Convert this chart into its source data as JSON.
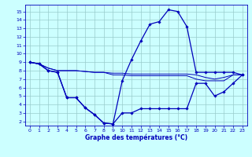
{
  "xlabel": "Graphe des températures (°C)",
  "hours": [
    0,
    1,
    2,
    3,
    4,
    5,
    6,
    7,
    8,
    9,
    10,
    11,
    12,
    13,
    14,
    15,
    16,
    17,
    18,
    19,
    20,
    21,
    22,
    23
  ],
  "line_temp": [
    9.0,
    8.8,
    8.0,
    7.8,
    4.8,
    4.8,
    3.6,
    2.8,
    1.8,
    1.7,
    6.8,
    9.3,
    11.5,
    13.5,
    13.8,
    15.2,
    15.0,
    13.2,
    7.8,
    7.8,
    7.8,
    7.8,
    7.8,
    7.5
  ],
  "line_min": [
    9.0,
    8.8,
    8.0,
    7.8,
    4.8,
    4.8,
    3.6,
    2.8,
    1.8,
    1.7,
    3.0,
    3.0,
    3.5,
    3.5,
    3.5,
    3.5,
    3.5,
    3.5,
    6.5,
    6.5,
    5.0,
    5.5,
    6.5,
    7.5
  ],
  "line_avg1": [
    9.0,
    8.8,
    8.3,
    8.0,
    8.0,
    8.0,
    7.9,
    7.8,
    7.8,
    7.7,
    7.7,
    7.6,
    7.6,
    7.6,
    7.6,
    7.6,
    7.6,
    7.6,
    7.5,
    7.2,
    7.0,
    7.2,
    7.5,
    7.5
  ],
  "line_avg2": [
    9.0,
    8.8,
    8.3,
    8.0,
    8.0,
    8.0,
    7.9,
    7.8,
    7.8,
    7.5,
    7.5,
    7.4,
    7.4,
    7.4,
    7.4,
    7.4,
    7.4,
    7.4,
    7.0,
    6.8,
    6.8,
    6.8,
    7.5,
    7.5
  ],
  "line_color": "#0000bb",
  "bg_color": "#ccffff",
  "grid_color": "#99cccc",
  "ylim": [
    1.5,
    15.8
  ],
  "yticks": [
    2,
    3,
    4,
    5,
    6,
    7,
    8,
    9,
    10,
    11,
    12,
    13,
    14,
    15
  ],
  "xlim": [
    -0.5,
    23.5
  ],
  "xticks": [
    0,
    1,
    2,
    3,
    4,
    5,
    6,
    7,
    8,
    9,
    10,
    11,
    12,
    13,
    14,
    15,
    16,
    17,
    18,
    19,
    20,
    21,
    22,
    23
  ]
}
